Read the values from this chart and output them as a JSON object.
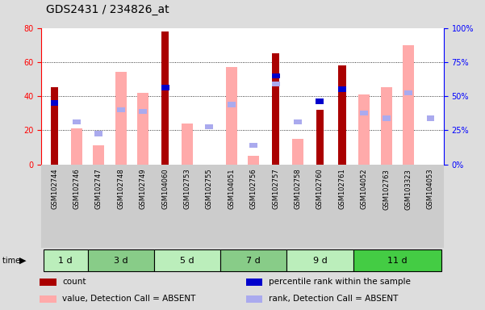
{
  "title": "GDS2431 / 234826_at",
  "samples": [
    "GSM102744",
    "GSM102746",
    "GSM102747",
    "GSM102748",
    "GSM102749",
    "GSM104060",
    "GSM102753",
    "GSM102755",
    "GSM104051",
    "GSM102756",
    "GSM102757",
    "GSM102758",
    "GSM102760",
    "GSM102761",
    "GSM104052",
    "GSM102763",
    "GSM103323",
    "GSM104053"
  ],
  "time_groups": [
    {
      "label": "1 d",
      "start": 0,
      "end": 2,
      "color": "#bbeebb"
    },
    {
      "label": "3 d",
      "start": 2,
      "end": 5,
      "color": "#88cc88"
    },
    {
      "label": "5 d",
      "start": 5,
      "end": 8,
      "color": "#bbeebb"
    },
    {
      "label": "7 d",
      "start": 8,
      "end": 11,
      "color": "#88cc88"
    },
    {
      "label": "9 d",
      "start": 11,
      "end": 14,
      "color": "#bbeebb"
    },
    {
      "label": "11 d",
      "start": 14,
      "end": 18,
      "color": "#44cc44"
    }
  ],
  "count": [
    45,
    0,
    0,
    0,
    0,
    78,
    0,
    0,
    0,
    0,
    65,
    0,
    32,
    58,
    0,
    0,
    0,
    0
  ],
  "percentile_rank": [
    36,
    0,
    0,
    0,
    0,
    45,
    0,
    0,
    0,
    0,
    52,
    0,
    37,
    44,
    0,
    0,
    0,
    0
  ],
  "value_absent": [
    0,
    21,
    11,
    54,
    42,
    0,
    24,
    0,
    57,
    5,
    0,
    15,
    0,
    0,
    41,
    45,
    70,
    0
  ],
  "rank_absent": [
    0,
    25,
    18,
    32,
    31,
    0,
    0,
    22,
    35,
    11,
    47,
    25,
    0,
    0,
    30,
    27,
    42,
    27
  ],
  "ylim": [
    0,
    80
  ],
  "y2lim": [
    0,
    100
  ],
  "yticks": [
    0,
    20,
    40,
    60,
    80
  ],
  "y2ticks": [
    0,
    25,
    50,
    75,
    100
  ],
  "color_count": "#aa0000",
  "color_percentile": "#0000cc",
  "color_value_absent": "#ffaaaa",
  "color_rank_absent": "#aaaaee",
  "bg_color": "#dddddd",
  "plot_bg": "#ffffff"
}
